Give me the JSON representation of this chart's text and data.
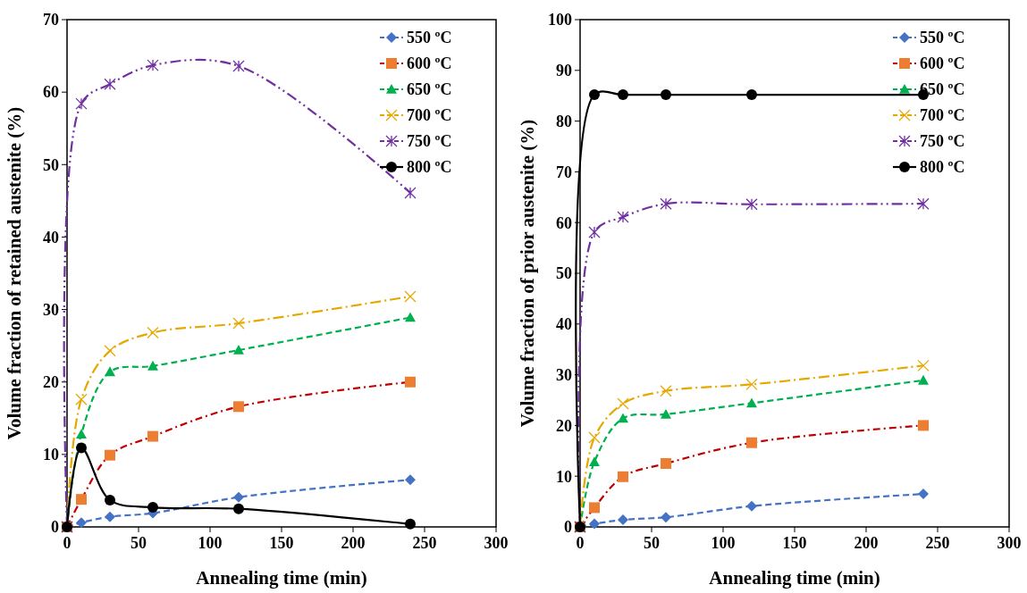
{
  "chart_data": [
    {
      "type": "line",
      "xlabel": "Annealing time (min)",
      "ylabel": "Volume fraction of retained austenite (%)",
      "x": [
        0,
        10,
        30,
        60,
        120,
        240
      ],
      "xlim": [
        0,
        300
      ],
      "xticks": [
        0,
        50,
        100,
        150,
        200,
        250,
        300
      ],
      "ylim": [
        0,
        70
      ],
      "yticks": [
        0,
        10,
        20,
        30,
        40,
        50,
        60,
        70
      ],
      "legend": "top right",
      "grid": false,
      "series": [
        {
          "name": "550 ºC",
          "color": "#4472c4",
          "marker": "diamond",
          "line_style": "dashed",
          "values": [
            0,
            0.6,
            1.4,
            1.9,
            4.1,
            6.5
          ]
        },
        {
          "name": "600 ºC",
          "color": "#c00000",
          "marker": "square",
          "line_style": "dashed",
          "values": [
            0,
            3.8,
            9.9,
            12.5,
            16.6,
            20
          ]
        },
        {
          "name": "650 ºC",
          "color": "#00b050",
          "marker": "triangle",
          "line_style": "dashed",
          "values": [
            0,
            12.8,
            21.4,
            22.2,
            24.4,
            28.9
          ]
        },
        {
          "name": "700 ºC",
          "color": "#e6a800",
          "marker": "cross",
          "line_style": "dashed",
          "values": [
            0,
            17.6,
            24.3,
            26.8,
            28.1,
            31.8
          ]
        },
        {
          "name": "750 ºC",
          "color": "#7030a0",
          "marker": "cross",
          "line_style": "dashed",
          "values": [
            0,
            58.4,
            61.1,
            63.7,
            63.6,
            46.1
          ]
        },
        {
          "name": "800 ºC",
          "color": "#000000",
          "marker": "circle",
          "line_style": "solid",
          "values": [
            0,
            10.9,
            3.7,
            2.7,
            2.5,
            0.4
          ]
        }
      ]
    },
    {
      "type": "line",
      "xlabel": "Annealing time (min)",
      "ylabel": "Volume fraction of prior austenite (%)",
      "x": [
        0,
        10,
        30,
        60,
        120,
        240
      ],
      "xlim": [
        0,
        300
      ],
      "xticks": [
        0,
        50,
        100,
        150,
        200,
        250,
        300
      ],
      "ylim": [
        0,
        100
      ],
      "yticks": [
        0,
        10,
        20,
        30,
        40,
        50,
        60,
        70,
        80,
        90,
        100
      ],
      "legend": "top right",
      "grid": false,
      "series": [
        {
          "name": "550 ºC",
          "color": "#4472c4",
          "marker": "diamond",
          "line_style": "dashed",
          "values": [
            0,
            0.6,
            1.4,
            1.9,
            4.1,
            6.5
          ]
        },
        {
          "name": "600 ºC",
          "color": "#c00000",
          "marker": "square",
          "line_style": "dashed",
          "values": [
            0,
            3.8,
            9.9,
            12.5,
            16.6,
            20
          ]
        },
        {
          "name": "650 ºC",
          "color": "#00b050",
          "marker": "triangle",
          "line_style": "dashed",
          "values": [
            0,
            12.8,
            21.4,
            22.2,
            24.4,
            28.9
          ]
        },
        {
          "name": "700 ºC",
          "color": "#e6a800",
          "marker": "cross",
          "line_style": "dashed",
          "values": [
            0,
            17.6,
            24.3,
            26.8,
            28.1,
            31.8
          ]
        },
        {
          "name": "750 ºC",
          "color": "#7030a0",
          "marker": "cross",
          "line_style": "dashed",
          "values": [
            0,
            58.1,
            61.1,
            63.7,
            63.6,
            63.7
          ]
        },
        {
          "name": "800 ºC",
          "color": "#000000",
          "marker": "circle",
          "line_style": "solid",
          "values": [
            0,
            85.2,
            85.2,
            85.2,
            85.2,
            85.2
          ]
        }
      ]
    }
  ]
}
